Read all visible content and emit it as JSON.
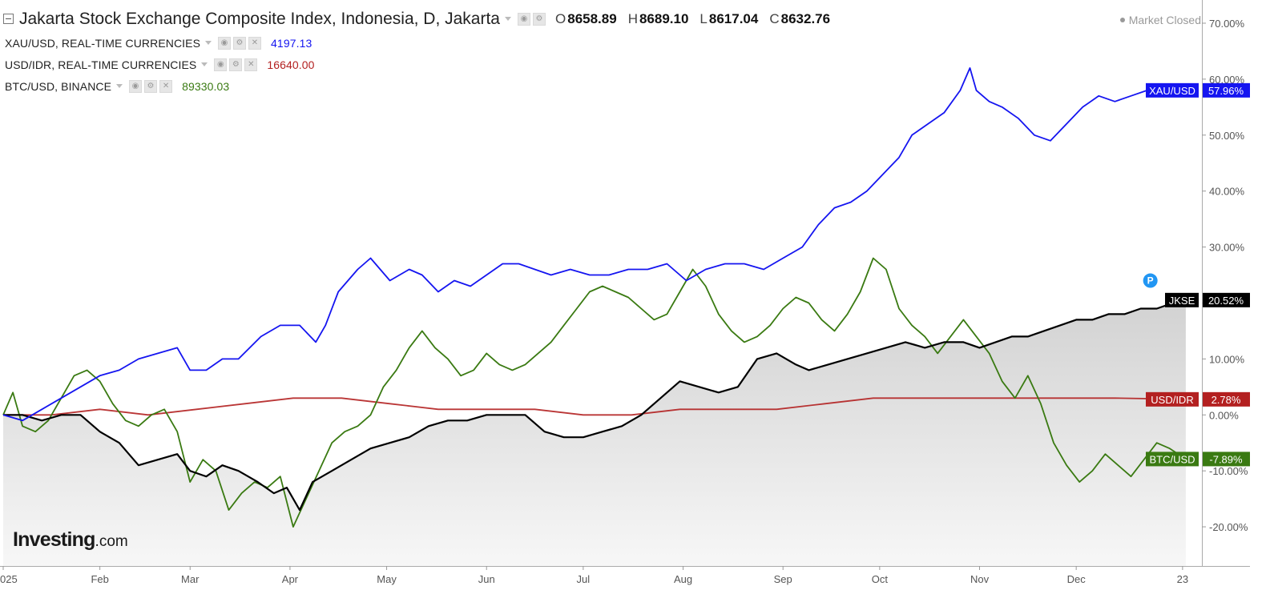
{
  "header": {
    "title": "Jakarta Stock Exchange Composite Index, Indonesia, D, Jakarta",
    "ohlc": [
      {
        "key": "O",
        "value": "8658.89"
      },
      {
        "key": "H",
        "value": "8689.10"
      },
      {
        "key": "L",
        "value": "8617.04"
      },
      {
        "key": "C",
        "value": "8632.76"
      }
    ],
    "market_status": "Market Closed"
  },
  "legend": [
    {
      "label": "XAU/USD, REAL-TIME CURRENCIES",
      "value": "4197.13",
      "color": "#1515f0"
    },
    {
      "label": "USD/IDR, REAL-TIME CURRENCIES",
      "value": "16640.00",
      "color": "#b32020"
    },
    {
      "label": "BTC/USD, BINANCE",
      "value": "89330.03",
      "color": "#3a7a12"
    }
  ],
  "brand": {
    "name": "Investing",
    "suffix": ".com"
  },
  "chart_data": {
    "type": "line",
    "y_axis": {
      "unit": "%",
      "ylim": [
        -27,
        73
      ],
      "ticks": [
        "70.00%",
        "60.00%",
        "50.00%",
        "40.00%",
        "30.00%",
        "20.00%",
        "10.00%",
        "0.00%",
        "-10.00%",
        "-20.00%"
      ],
      "tick_values": [
        70,
        60,
        50,
        40,
        30,
        20,
        10,
        0,
        -10,
        -20
      ]
    },
    "x_axis": {
      "labels": [
        "025",
        "Feb",
        "Mar",
        "Apr",
        "May",
        "Jun",
        "Jul",
        "Aug",
        "Sep",
        "Oct",
        "Nov",
        "Dec",
        "23"
      ],
      "label_days": [
        0,
        30,
        58,
        89,
        119,
        150,
        180,
        211,
        242,
        272,
        303,
        333,
        366
      ],
      "xlim": [
        0,
        372
      ]
    },
    "series": [
      {
        "name": "XAU/USD",
        "color": "#1515f0",
        "end_label": "57.96%",
        "points": [
          [
            0,
            0
          ],
          [
            6,
            -1
          ],
          [
            12,
            1
          ],
          [
            18,
            3
          ],
          [
            24,
            5
          ],
          [
            30,
            7
          ],
          [
            36,
            8
          ],
          [
            42,
            10
          ],
          [
            48,
            11
          ],
          [
            54,
            12
          ],
          [
            58,
            8
          ],
          [
            63,
            8
          ],
          [
            68,
            10
          ],
          [
            73,
            10
          ],
          [
            80,
            14
          ],
          [
            86,
            16
          ],
          [
            92,
            16
          ],
          [
            97,
            13
          ],
          [
            100,
            16
          ],
          [
            104,
            22
          ],
          [
            110,
            26
          ],
          [
            114,
            28
          ],
          [
            120,
            24
          ],
          [
            126,
            26
          ],
          [
            130,
            25
          ],
          [
            135,
            22
          ],
          [
            140,
            24
          ],
          [
            145,
            23
          ],
          [
            150,
            25
          ],
          [
            155,
            27
          ],
          [
            160,
            27
          ],
          [
            165,
            26
          ],
          [
            170,
            25
          ],
          [
            176,
            26
          ],
          [
            182,
            25
          ],
          [
            188,
            25
          ],
          [
            194,
            26
          ],
          [
            200,
            26
          ],
          [
            206,
            27
          ],
          [
            212,
            24
          ],
          [
            218,
            26
          ],
          [
            224,
            27
          ],
          [
            230,
            27
          ],
          [
            236,
            26
          ],
          [
            242,
            28
          ],
          [
            248,
            30
          ],
          [
            253,
            34
          ],
          [
            258,
            37
          ],
          [
            263,
            38
          ],
          [
            268,
            40
          ],
          [
            273,
            43
          ],
          [
            278,
            46
          ],
          [
            282,
            50
          ],
          [
            287,
            52
          ],
          [
            292,
            54
          ],
          [
            297,
            58
          ],
          [
            300,
            62
          ],
          [
            302,
            58
          ],
          [
            306,
            56
          ],
          [
            310,
            55
          ],
          [
            315,
            53
          ],
          [
            320,
            50
          ],
          [
            325,
            49
          ],
          [
            330,
            52
          ],
          [
            335,
            55
          ],
          [
            340,
            57
          ],
          [
            345,
            56
          ],
          [
            350,
            57
          ],
          [
            355,
            58
          ],
          [
            358,
            59
          ],
          [
            363,
            58
          ],
          [
            367,
            58
          ]
        ]
      },
      {
        "name": "JKSE",
        "color": "#000000",
        "end_label": "20.52%",
        "points": [
          [
            0,
            0
          ],
          [
            6,
            0
          ],
          [
            12,
            -1
          ],
          [
            18,
            0
          ],
          [
            24,
            0
          ],
          [
            30,
            -3
          ],
          [
            36,
            -5
          ],
          [
            42,
            -9
          ],
          [
            48,
            -8
          ],
          [
            54,
            -7
          ],
          [
            58,
            -10
          ],
          [
            63,
            -11
          ],
          [
            68,
            -9
          ],
          [
            73,
            -10
          ],
          [
            79,
            -12
          ],
          [
            84,
            -14
          ],
          [
            88,
            -13
          ],
          [
            92,
            -17
          ],
          [
            96,
            -12
          ],
          [
            102,
            -10
          ],
          [
            108,
            -8
          ],
          [
            114,
            -6
          ],
          [
            120,
            -5
          ],
          [
            126,
            -4
          ],
          [
            132,
            -2
          ],
          [
            138,
            -1
          ],
          [
            144,
            -1
          ],
          [
            150,
            0
          ],
          [
            156,
            0
          ],
          [
            162,
            0
          ],
          [
            168,
            -3
          ],
          [
            174,
            -4
          ],
          [
            180,
            -4
          ],
          [
            186,
            -3
          ],
          [
            192,
            -2
          ],
          [
            198,
            0
          ],
          [
            204,
            3
          ],
          [
            210,
            6
          ],
          [
            216,
            5
          ],
          [
            222,
            4
          ],
          [
            228,
            5
          ],
          [
            234,
            10
          ],
          [
            240,
            11
          ],
          [
            246,
            9
          ],
          [
            250,
            8
          ],
          [
            256,
            9
          ],
          [
            262,
            10
          ],
          [
            268,
            11
          ],
          [
            274,
            12
          ],
          [
            280,
            13
          ],
          [
            286,
            12
          ],
          [
            292,
            13
          ],
          [
            298,
            13
          ],
          [
            303,
            12
          ],
          [
            308,
            13
          ],
          [
            313,
            14
          ],
          [
            318,
            14
          ],
          [
            323,
            15
          ],
          [
            328,
            16
          ],
          [
            333,
            17
          ],
          [
            338,
            17
          ],
          [
            343,
            18
          ],
          [
            348,
            18
          ],
          [
            353,
            19
          ],
          [
            358,
            19
          ],
          [
            363,
            20
          ],
          [
            367,
            20.52
          ]
        ]
      },
      {
        "name": "USD/IDR",
        "color": "#b32020",
        "end_label": "2.78%",
        "points": [
          [
            0,
            0
          ],
          [
            15,
            0
          ],
          [
            30,
            1
          ],
          [
            45,
            0
          ],
          [
            60,
            1
          ],
          [
            75,
            2
          ],
          [
            90,
            3
          ],
          [
            105,
            3
          ],
          [
            120,
            2
          ],
          [
            135,
            1
          ],
          [
            150,
            1
          ],
          [
            165,
            1
          ],
          [
            180,
            0
          ],
          [
            195,
            0
          ],
          [
            210,
            1
          ],
          [
            225,
            1
          ],
          [
            240,
            1
          ],
          [
            255,
            2
          ],
          [
            270,
            3
          ],
          [
            285,
            3
          ],
          [
            300,
            3
          ],
          [
            315,
            3
          ],
          [
            330,
            3
          ],
          [
            345,
            3
          ],
          [
            367,
            2.78
          ]
        ]
      },
      {
        "name": "BTC/USD",
        "color": "#3a7a12",
        "end_label": "-7.89%",
        "points": [
          [
            0,
            0
          ],
          [
            3,
            4
          ],
          [
            6,
            -2
          ],
          [
            10,
            -3
          ],
          [
            14,
            -1
          ],
          [
            18,
            3
          ],
          [
            22,
            7
          ],
          [
            26,
            8
          ],
          [
            30,
            6
          ],
          [
            34,
            2
          ],
          [
            38,
            -1
          ],
          [
            42,
            -2
          ],
          [
            46,
            0
          ],
          [
            50,
            1
          ],
          [
            54,
            -3
          ],
          [
            58,
            -12
          ],
          [
            62,
            -8
          ],
          [
            66,
            -10
          ],
          [
            70,
            -17
          ],
          [
            74,
            -14
          ],
          [
            78,
            -12
          ],
          [
            82,
            -13
          ],
          [
            86,
            -11
          ],
          [
            90,
            -20
          ],
          [
            94,
            -15
          ],
          [
            98,
            -10
          ],
          [
            102,
            -5
          ],
          [
            106,
            -3
          ],
          [
            110,
            -2
          ],
          [
            114,
            0
          ],
          [
            118,
            5
          ],
          [
            122,
            8
          ],
          [
            126,
            12
          ],
          [
            130,
            15
          ],
          [
            134,
            12
          ],
          [
            138,
            10
          ],
          [
            142,
            7
          ],
          [
            146,
            8
          ],
          [
            150,
            11
          ],
          [
            154,
            9
          ],
          [
            158,
            8
          ],
          [
            162,
            9
          ],
          [
            166,
            11
          ],
          [
            170,
            13
          ],
          [
            174,
            16
          ],
          [
            178,
            19
          ],
          [
            182,
            22
          ],
          [
            186,
            23
          ],
          [
            190,
            22
          ],
          [
            194,
            21
          ],
          [
            198,
            19
          ],
          [
            202,
            17
          ],
          [
            206,
            18
          ],
          [
            210,
            22
          ],
          [
            214,
            26
          ],
          [
            218,
            23
          ],
          [
            222,
            18
          ],
          [
            226,
            15
          ],
          [
            230,
            13
          ],
          [
            234,
            14
          ],
          [
            238,
            16
          ],
          [
            242,
            19
          ],
          [
            246,
            21
          ],
          [
            250,
            20
          ],
          [
            254,
            17
          ],
          [
            258,
            15
          ],
          [
            262,
            18
          ],
          [
            266,
            22
          ],
          [
            270,
            28
          ],
          [
            274,
            26
          ],
          [
            278,
            19
          ],
          [
            282,
            16
          ],
          [
            286,
            14
          ],
          [
            290,
            11
          ],
          [
            294,
            14
          ],
          [
            298,
            17
          ],
          [
            302,
            14
          ],
          [
            306,
            11
          ],
          [
            310,
            6
          ],
          [
            314,
            3
          ],
          [
            318,
            7
          ],
          [
            322,
            2
          ],
          [
            326,
            -5
          ],
          [
            330,
            -9
          ],
          [
            334,
            -12
          ],
          [
            338,
            -10
          ],
          [
            342,
            -7
          ],
          [
            346,
            -9
          ],
          [
            350,
            -11
          ],
          [
            354,
            -8
          ],
          [
            358,
            -5
          ],
          [
            362,
            -6
          ],
          [
            367,
            -7.89
          ]
        ]
      }
    ],
    "fill_series": "JKSE",
    "grid": false,
    "marker": {
      "label": "P",
      "x": 356,
      "y": 24
    }
  }
}
